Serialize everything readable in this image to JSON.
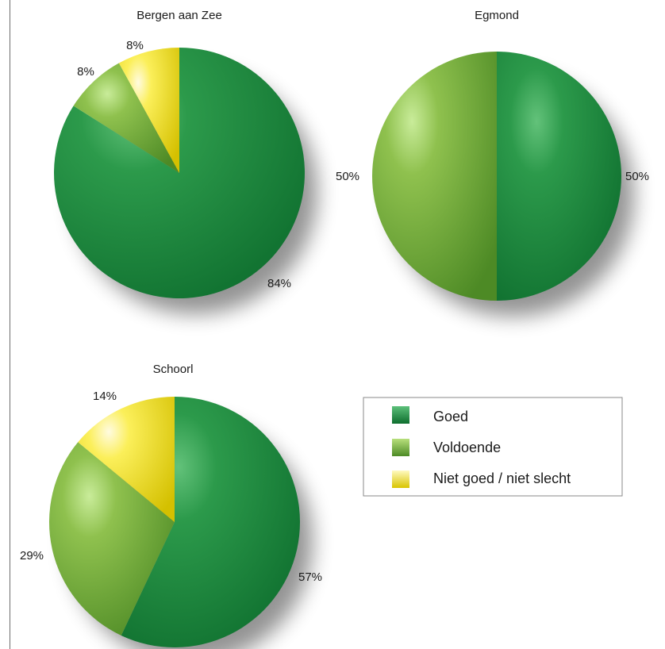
{
  "chart_data": [
    {
      "type": "pie",
      "title": "Bergen aan Zee",
      "categories": [
        "Goed",
        "Voldoende",
        "Niet goed / niet slecht"
      ],
      "values": [
        84,
        8,
        8
      ],
      "labels": [
        "84%",
        "8%",
        "8%"
      ]
    },
    {
      "type": "pie",
      "title": "Egmond",
      "categories": [
        "Goed",
        "Voldoende"
      ],
      "values": [
        50,
        50
      ],
      "labels": [
        "50%",
        "50%"
      ]
    },
    {
      "type": "pie",
      "title": "Schoorl",
      "categories": [
        "Goed",
        "Voldoende",
        "Niet goed / niet slecht"
      ],
      "values": [
        57,
        29,
        14
      ],
      "labels": [
        "57%",
        "29%",
        "14%"
      ]
    }
  ],
  "legend": {
    "placement": "right-middle",
    "items": [
      {
        "label": "Goed",
        "color": "#1a8a3c"
      },
      {
        "label": "Voldoende",
        "color": "#6fa832"
      },
      {
        "label": "Niet goed / niet slecht",
        "color": "#f2e21a"
      }
    ]
  },
  "colors": {
    "Goed": "#1a8a3c",
    "Voldoende": "#6fa832",
    "Niet goed / niet slecht": "#f2e21a"
  }
}
